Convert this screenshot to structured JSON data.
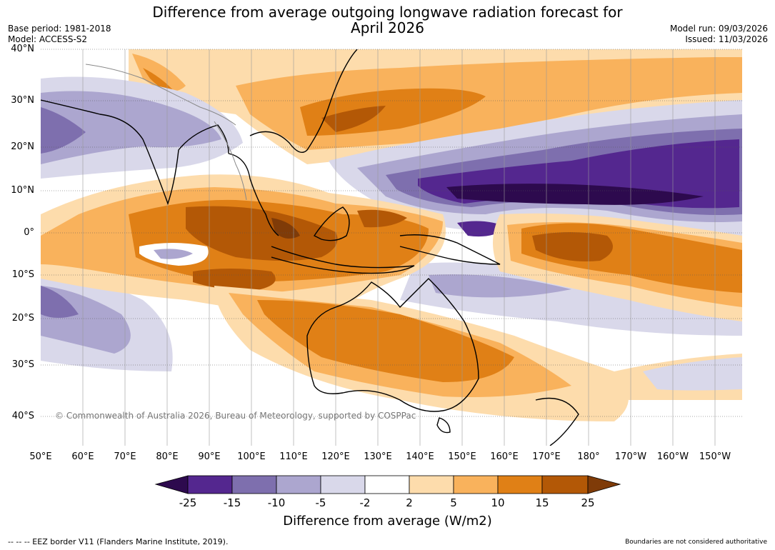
{
  "header": {
    "title_line1": "Difference from average outgoing longwave radiation forecast for",
    "title_line2": "April 2026",
    "base_period": "Base period: 1981-2018",
    "model": "Model: ACCESS-S2",
    "model_run": "Model run: 09/03/2026",
    "issued": "Issued: 11/03/2026"
  },
  "map": {
    "lat_labels": [
      "40°N",
      "30°N",
      "20°N",
      "10°N",
      "0°",
      "10°S",
      "20°S",
      "30°S",
      "40°S"
    ],
    "lon_labels": [
      "50°E",
      "60°E",
      "70°E",
      "80°E",
      "90°E",
      "100°E",
      "110°E",
      "120°E",
      "130°E",
      "140°E",
      "150°E",
      "160°E",
      "170°E",
      "180°",
      "170°W",
      "160°W",
      "150°W"
    ],
    "copyright": "© Commonwealth of Australia 2026, Bureau of Meteorology, supported by COSPPac"
  },
  "legend": {
    "colors": [
      "#2d0a4e",
      "#54278f",
      "#7e6fae",
      "#aca6cf",
      "#d9d8ea",
      "#ffffff",
      "#fddcac",
      "#f9b25c",
      "#e08016",
      "#b35806",
      "#7f3b08"
    ],
    "ticks": [
      "-25",
      "-15",
      "-10",
      "-5",
      "-2",
      "2",
      "5",
      "10",
      "15",
      "25"
    ],
    "title": "Difference from average (W/m2)"
  },
  "footer": {
    "eez": "--  --  -- EEZ border V11 (Flanders Marine Institute, 2019).",
    "disclaimer": "Boundaries are not considered authoritative"
  }
}
